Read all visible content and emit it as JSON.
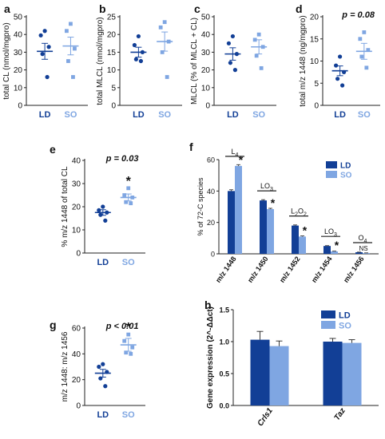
{
  "colors": {
    "LD": "#123f96",
    "SO": "#7fa6e2",
    "axis": "#222222",
    "text": "#111111"
  },
  "chart_data": [
    {
      "id": "a",
      "type": "scatter",
      "panel_label": "a",
      "ylabel": "total  CL (nmol/mgpro)",
      "ylim": [
        0,
        50
      ],
      "yticks": [
        0,
        10,
        20,
        30,
        40,
        50
      ],
      "categories": [
        "LD",
        "SO"
      ],
      "annotation": "",
      "star": "",
      "groups": [
        {
          "name": "LD",
          "points": [
            42,
            39.5,
            33,
            29,
            16
          ],
          "mean": 30.5,
          "sem": 4.5
        },
        {
          "name": "SO",
          "points": [
            46,
            42,
            32,
            25,
            16
          ],
          "mean": 33.5,
          "sem": 5
        }
      ]
    },
    {
      "id": "b",
      "type": "scatter",
      "panel_label": "b",
      "ylabel": "total  MLCL (nmol/mgpro)",
      "ylim": [
        0,
        25
      ],
      "yticks": [
        0,
        5,
        10,
        15,
        20,
        25
      ],
      "categories": [
        "LD",
        "SO"
      ],
      "annotation": "",
      "star": "",
      "groups": [
        {
          "name": "LD",
          "points": [
            19.5,
            17,
            15,
            13,
            12.5
          ],
          "mean": 15,
          "sem": 1.4
        },
        {
          "name": "SO",
          "points": [
            23.5,
            22,
            18,
            15,
            8
          ],
          "mean": 18,
          "sem": 2.7
        }
      ]
    },
    {
      "id": "c",
      "type": "scatter",
      "panel_label": "c",
      "ylabel": "MLCL (% of MLCL + CL)",
      "ylim": [
        0,
        50
      ],
      "yticks": [
        0,
        10,
        20,
        30,
        40,
        50
      ],
      "categories": [
        "LD",
        "SO"
      ],
      "annotation": "",
      "star": "",
      "groups": [
        {
          "name": "LD",
          "points": [
            39,
            35,
            29,
            24,
            20
          ],
          "mean": 29,
          "sem": 3.5
        },
        {
          "name": "SO",
          "points": [
            40,
            37,
            33,
            28,
            21
          ],
          "mean": 33,
          "sem": 4
        }
      ]
    },
    {
      "id": "d",
      "type": "scatter",
      "panel_label": "d",
      "ylabel": "total m/z 1448 (ng/mgpro)",
      "ylim": [
        0,
        20
      ],
      "yticks": [
        0,
        5,
        10,
        15,
        20
      ],
      "categories": [
        "LD",
        "SO"
      ],
      "annotation": "p = 0.08",
      "star": "",
      "groups": [
        {
          "name": "LD",
          "points": [
            11,
            9,
            7.5,
            6,
            4.5
          ],
          "mean": 7.8,
          "sem": 1.1
        },
        {
          "name": "SO",
          "points": [
            16.5,
            15,
            12.5,
            11,
            8.5
          ],
          "mean": 12.2,
          "sem": 1.8
        }
      ]
    },
    {
      "id": "e",
      "type": "scatter",
      "panel_label": "e",
      "ylabel": "% m/z 1448 of total  CL",
      "ylim": [
        0,
        40
      ],
      "yticks": [
        0,
        10,
        20,
        30,
        40
      ],
      "categories": [
        "LD",
        "SO"
      ],
      "annotation": "p = 0.03",
      "star": "*",
      "groups": [
        {
          "name": "LD",
          "points": [
            20,
            18.5,
            17.5,
            16.5,
            14
          ],
          "mean": 17.5,
          "sem": 1.2
        },
        {
          "name": "SO",
          "points": [
            28,
            25,
            24,
            22,
            21.5
          ],
          "mean": 24,
          "sem": 1.5
        }
      ]
    },
    {
      "id": "g",
      "type": "scatter",
      "panel_label": "g",
      "ylabel": "m/z 1448: m/z 1456",
      "ylim": [
        0,
        60
      ],
      "yticks": [
        0,
        20,
        40,
        60
      ],
      "categories": [
        "LD",
        "SO"
      ],
      "annotation": "p < 0.01",
      "star": "*",
      "groups": [
        {
          "name": "LD",
          "points": [
            32,
            30,
            26,
            21,
            15
          ],
          "mean": 25,
          "sem": 3
        },
        {
          "name": "SO",
          "points": [
            55,
            50,
            45,
            41,
            40
          ],
          "mean": 47,
          "sem": 5
        }
      ]
    },
    {
      "id": "f",
      "type": "bar",
      "panel_label": "f",
      "ylabel": "% of 72-C species",
      "ylim": [
        0,
        60
      ],
      "yticks": [
        0,
        20,
        40,
        60
      ],
      "categories": [
        "m/z 1448",
        "m/z 1450",
        "m/z 1452",
        "m/z 1454",
        "m/z 1456"
      ],
      "group_labels": [
        [
          "L",
          "4"
        ],
        [
          "LO",
          "3"
        ],
        [
          "L",
          "2",
          "O",
          "2"
        ],
        [
          "LO",
          "3"
        ],
        [
          "O",
          "4"
        ]
      ],
      "stars": [
        "*",
        "*",
        "*",
        "*",
        "NS"
      ],
      "legend": [
        "LD",
        "SO"
      ],
      "legend_position": "top-right",
      "series": [
        {
          "name": "LD",
          "values": [
            40,
            34,
            18,
            5,
            1
          ],
          "errors": [
            0.8,
            0.5,
            0.4,
            0.2,
            0.1
          ]
        },
        {
          "name": "SO",
          "values": [
            56,
            28.5,
            11,
            1.5,
            0.5
          ],
          "errors": [
            0.8,
            0.5,
            0.4,
            0.2,
            0.1
          ]
        }
      ]
    },
    {
      "id": "h",
      "type": "bar",
      "panel_label": "h",
      "ylabel": "Gene expression (2^-ΔΔct)",
      "ylim": [
        0,
        1.5
      ],
      "yticks": [
        0,
        0.5,
        1.0,
        1.5
      ],
      "ytick_labels": [
        "0.0",
        "0.5",
        "1.0",
        "1.5"
      ],
      "categories": [
        "Crls1",
        "Taz"
      ],
      "legend": [
        "LD",
        "SO"
      ],
      "legend_position": "top-right",
      "series": [
        {
          "name": "LD",
          "values": [
            1.03,
            1.0
          ],
          "errors": [
            0.13,
            0.05
          ]
        },
        {
          "name": "SO",
          "values": [
            0.93,
            0.98
          ],
          "errors": [
            0.08,
            0.05
          ]
        }
      ]
    }
  ]
}
